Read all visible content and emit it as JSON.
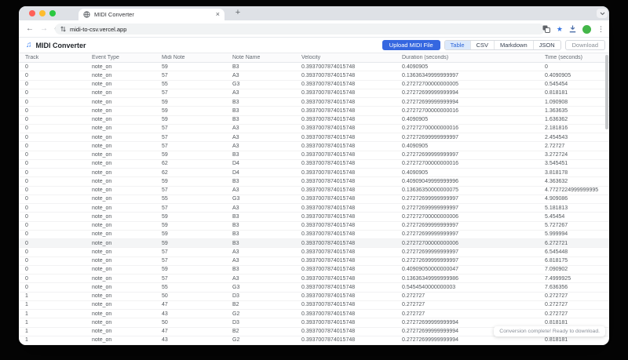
{
  "browser": {
    "tab_title": "MIDI Converter",
    "new_tab_label": "+",
    "close_tab_label": "×",
    "back_label": "←",
    "forward_label": "→",
    "url": "midi-to-csv.vercel.app",
    "menu_dots": "⋮",
    "star": "★"
  },
  "app": {
    "title": "MIDI Converter",
    "music_icon": "♫",
    "upload_button": "Upload MIDI File",
    "download_button": "Download",
    "format_tabs": [
      {
        "label": "Table",
        "active": true
      },
      {
        "label": "CSV",
        "active": false
      },
      {
        "label": "Markdown",
        "active": false
      },
      {
        "label": "JSON",
        "active": false
      }
    ],
    "toast": "Conversion complete! Ready to download."
  },
  "colors": {
    "accent_blue": "#3567e0",
    "active_tab_bg": "#dce9fb",
    "avatar_green": "#43b649",
    "bookmark_star_blue": "#3574e0"
  },
  "table": {
    "columns": [
      "Track",
      "Event Type",
      "Midi Note",
      "Note Name",
      "Velocity",
      "Duration (seconds)",
      "Time (seconds)"
    ],
    "highlighted_row": 20,
    "rows": [
      [
        "0",
        "note_on",
        "59",
        "B3",
        "0.3937007874015748",
        "0.4090905",
        "0"
      ],
      [
        "0",
        "note_on",
        "57",
        "A3",
        "0.3937007874015748",
        "0.13636349999999997",
        "0.4090905"
      ],
      [
        "0",
        "note_on",
        "55",
        "G3",
        "0.3937007874015748",
        "0.27272700000000005",
        "0.545454"
      ],
      [
        "0",
        "note_on",
        "57",
        "A3",
        "0.3937007874015748",
        "0.27272699999999994",
        "0.818181"
      ],
      [
        "0",
        "note_on",
        "59",
        "B3",
        "0.3937007874015748",
        "0.27272699999999994",
        "1.090908"
      ],
      [
        "0",
        "note_on",
        "59",
        "B3",
        "0.3937007874015748",
        "0.27272700000000016",
        "1.363635"
      ],
      [
        "0",
        "note_on",
        "59",
        "B3",
        "0.3937007874015748",
        "0.4090905",
        "1.636362"
      ],
      [
        "0",
        "note_on",
        "57",
        "A3",
        "0.3937007874015748",
        "0.27272700000000016",
        "2.181816"
      ],
      [
        "0",
        "note_on",
        "57",
        "A3",
        "0.3937007874015748",
        "0.27272699999999997",
        "2.454543"
      ],
      [
        "0",
        "note_on",
        "57",
        "A3",
        "0.3937007874015748",
        "0.4090905",
        "2.72727"
      ],
      [
        "0",
        "note_on",
        "59",
        "B3",
        "0.3937007874015748",
        "0.27272699999999997",
        "3.272724"
      ],
      [
        "0",
        "note_on",
        "62",
        "D4",
        "0.3937007874015748",
        "0.27272700000000016",
        "3.545451"
      ],
      [
        "0",
        "note_on",
        "62",
        "D4",
        "0.3937007874015748",
        "0.4090905",
        "3.818178"
      ],
      [
        "0",
        "note_on",
        "59",
        "B3",
        "0.3937007874015748",
        "0.40909049999999996",
        "4.363632"
      ],
      [
        "0",
        "note_on",
        "57",
        "A3",
        "0.3937007874015748",
        "0.13636350000000075",
        "4.7727224999999995"
      ],
      [
        "0",
        "note_on",
        "55",
        "G3",
        "0.3937007874015748",
        "0.27272699999999997",
        "4.909086"
      ],
      [
        "0",
        "note_on",
        "57",
        "A3",
        "0.3937007874015748",
        "0.27272699999999997",
        "5.181813"
      ],
      [
        "0",
        "note_on",
        "59",
        "B3",
        "0.3937007874015748",
        "0.27272700000000006",
        "5.45454"
      ],
      [
        "0",
        "note_on",
        "59",
        "B3",
        "0.3937007874015748",
        "0.27272699999999997",
        "5.727267"
      ],
      [
        "0",
        "note_on",
        "59",
        "B3",
        "0.3937007874015748",
        "0.27272699999999997",
        "5.999994"
      ],
      [
        "0",
        "note_on",
        "59",
        "B3",
        "0.3937007874015748",
        "0.27272700000000006",
        "6.272721"
      ],
      [
        "0",
        "note_on",
        "57",
        "A3",
        "0.3937007874015748",
        "0.27272699999999997",
        "6.545448"
      ],
      [
        "0",
        "note_on",
        "57",
        "A3",
        "0.3937007874015748",
        "0.27272699999999997",
        "6.818175"
      ],
      [
        "0",
        "note_on",
        "59",
        "B3",
        "0.3937007874015748",
        "0.40909050000000047",
        "7.090902"
      ],
      [
        "0",
        "note_on",
        "57",
        "A3",
        "0.3937007874015748",
        "0.13636349999999986",
        "7.4999925"
      ],
      [
        "0",
        "note_on",
        "55",
        "G3",
        "0.3937007874015748",
        "0.5454540000000003",
        "7.636356"
      ],
      [
        "1",
        "note_on",
        "50",
        "D3",
        "0.3937007874015748",
        "0.272727",
        "0.272727"
      ],
      [
        "1",
        "note_on",
        "47",
        "B2",
        "0.3937007874015748",
        "0.272727",
        "0.272727"
      ],
      [
        "1",
        "note_on",
        "43",
        "G2",
        "0.3937007874015748",
        "0.272727",
        "0.272727"
      ],
      [
        "1",
        "note_on",
        "50",
        "D3",
        "0.3937007874015748",
        "0.27272699999999994",
        "0.818181"
      ],
      [
        "1",
        "note_on",
        "47",
        "B2",
        "0.3937007874015748",
        "0.27272699999999994",
        "0.818181"
      ],
      [
        "1",
        "note_on",
        "43",
        "G2",
        "0.3937007874015748",
        "0.27272699999999994",
        "0.818181"
      ]
    ]
  }
}
